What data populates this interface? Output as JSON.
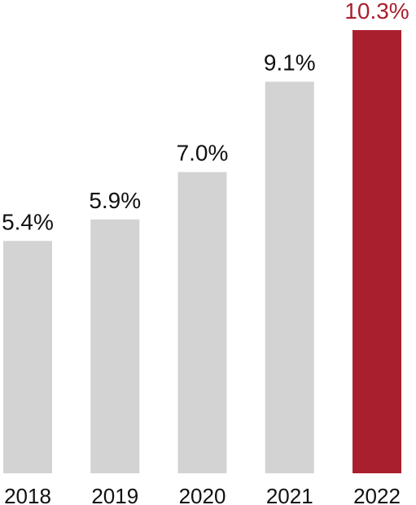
{
  "chart_data": {
    "type": "bar",
    "title": "",
    "xlabel": "",
    "ylabel": "",
    "categories": [
      "2018",
      "2019",
      "2020",
      "2021",
      "2022"
    ],
    "values": [
      5.4,
      5.9,
      7.0,
      9.1,
      10.3
    ],
    "value_labels": [
      "5.4%",
      "5.9%",
      "7.0%",
      "9.1%",
      "10.3%"
    ],
    "unit": "%",
    "ylim": [
      0,
      10.3
    ],
    "grid": false,
    "legend": "none",
    "colors": {
      "default_bar": "#d3d3d3",
      "highlight_bar": "#aa1f2e",
      "default_label": "#111111",
      "highlight_label": "#aa1f2e"
    },
    "highlight_category": "2022"
  }
}
